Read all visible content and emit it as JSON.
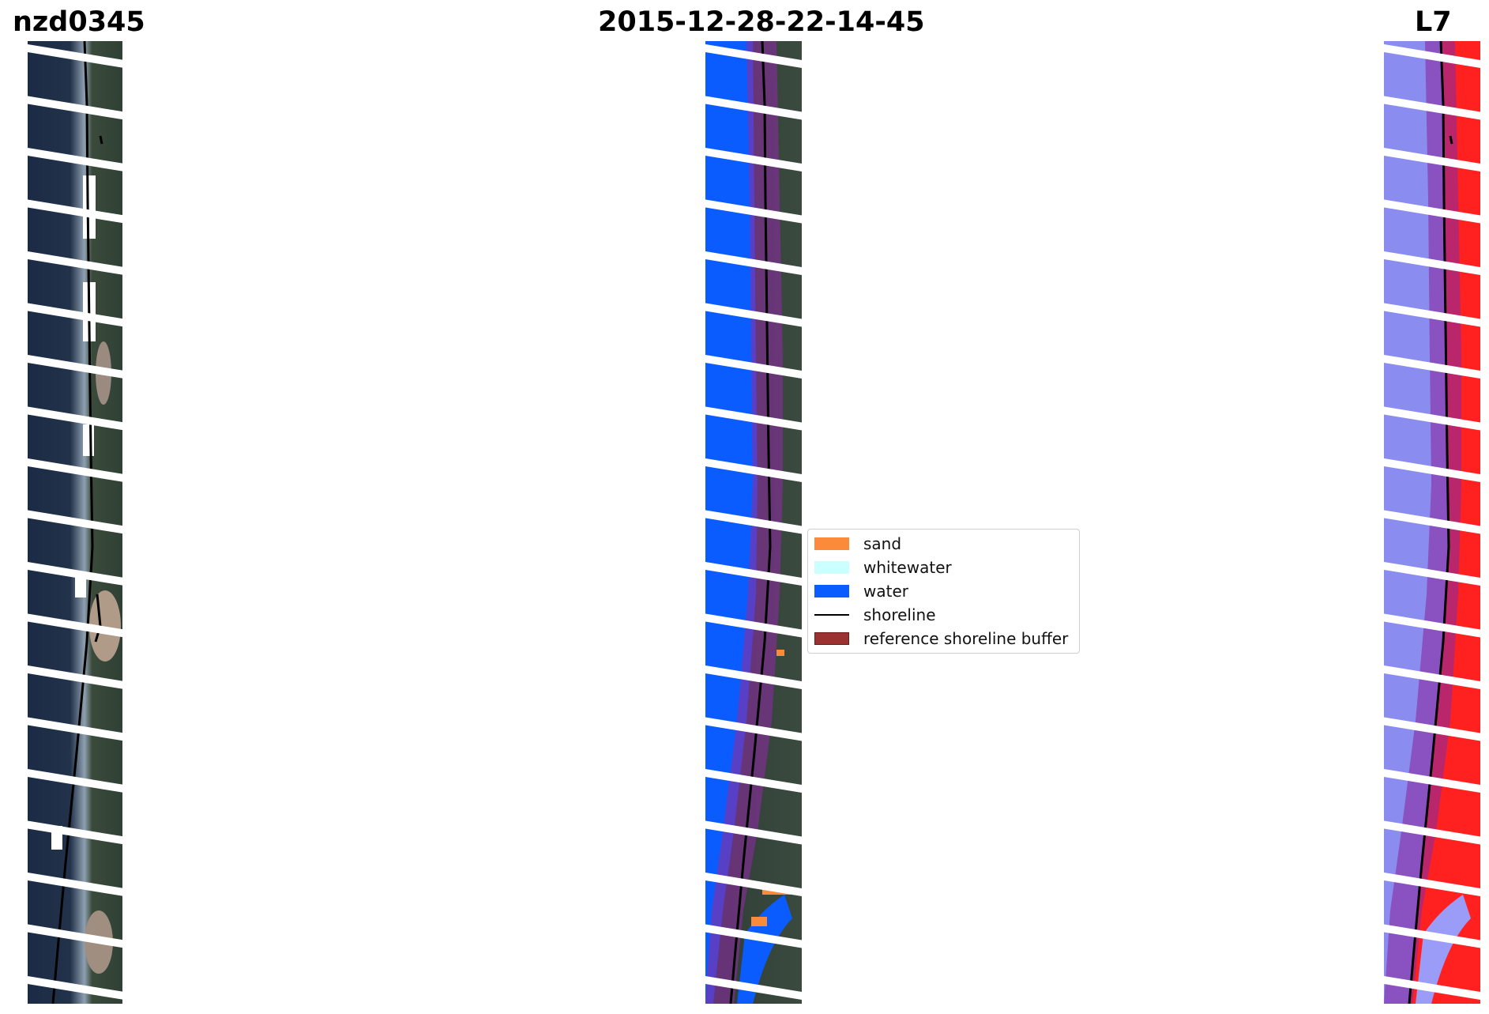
{
  "titles": {
    "left": "nzd0345",
    "center": "2015-12-28-22-14-45",
    "right": "L7"
  },
  "panels": {
    "left": "RGB satellite image with detected shoreline",
    "center": "Classified image overlay with reference shoreline buffer",
    "right": "Index image (blue-white-red) with shoreline and buffer"
  },
  "legend": {
    "items": [
      {
        "label": "sand",
        "color": "#fb8b3a",
        "kind": "patch"
      },
      {
        "label": "whitewater",
        "color": "#ccffff",
        "kind": "patch"
      },
      {
        "label": "water",
        "color": "#0a5cff",
        "kind": "patch"
      },
      {
        "label": "shoreline",
        "color": "#000000",
        "kind": "line"
      },
      {
        "label": "reference shoreline buffer",
        "color": "#9a3232",
        "kind": "patch"
      }
    ]
  },
  "colors": {
    "buffer": "#8a2ca0",
    "water": "#0a5cff",
    "sand": "#fb8b3a",
    "land_dark": "#2a3a34",
    "sea_dark": "#1a2a44",
    "index_low": "#8080ff",
    "index_high": "#ff2020"
  }
}
